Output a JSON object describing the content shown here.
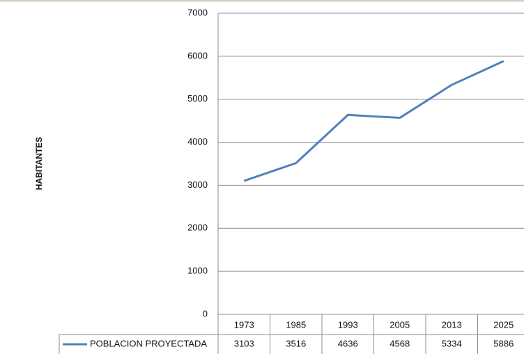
{
  "chart_data": {
    "type": "line",
    "y_label": "HABITANTES",
    "categories": [
      "1973",
      "1985",
      "1993",
      "2005",
      "2013",
      "2025"
    ],
    "series": [
      {
        "name": "POBLACION PROYECTADA",
        "color": "#4f81bd",
        "values": [
          3103,
          3516,
          4636,
          4568,
          5334,
          5886
        ]
      }
    ],
    "ylim": [
      0,
      7000
    ],
    "yticks": [
      0,
      1000,
      2000,
      3000,
      4000,
      5000,
      6000,
      7000
    ],
    "grid": true,
    "data_table": true
  }
}
